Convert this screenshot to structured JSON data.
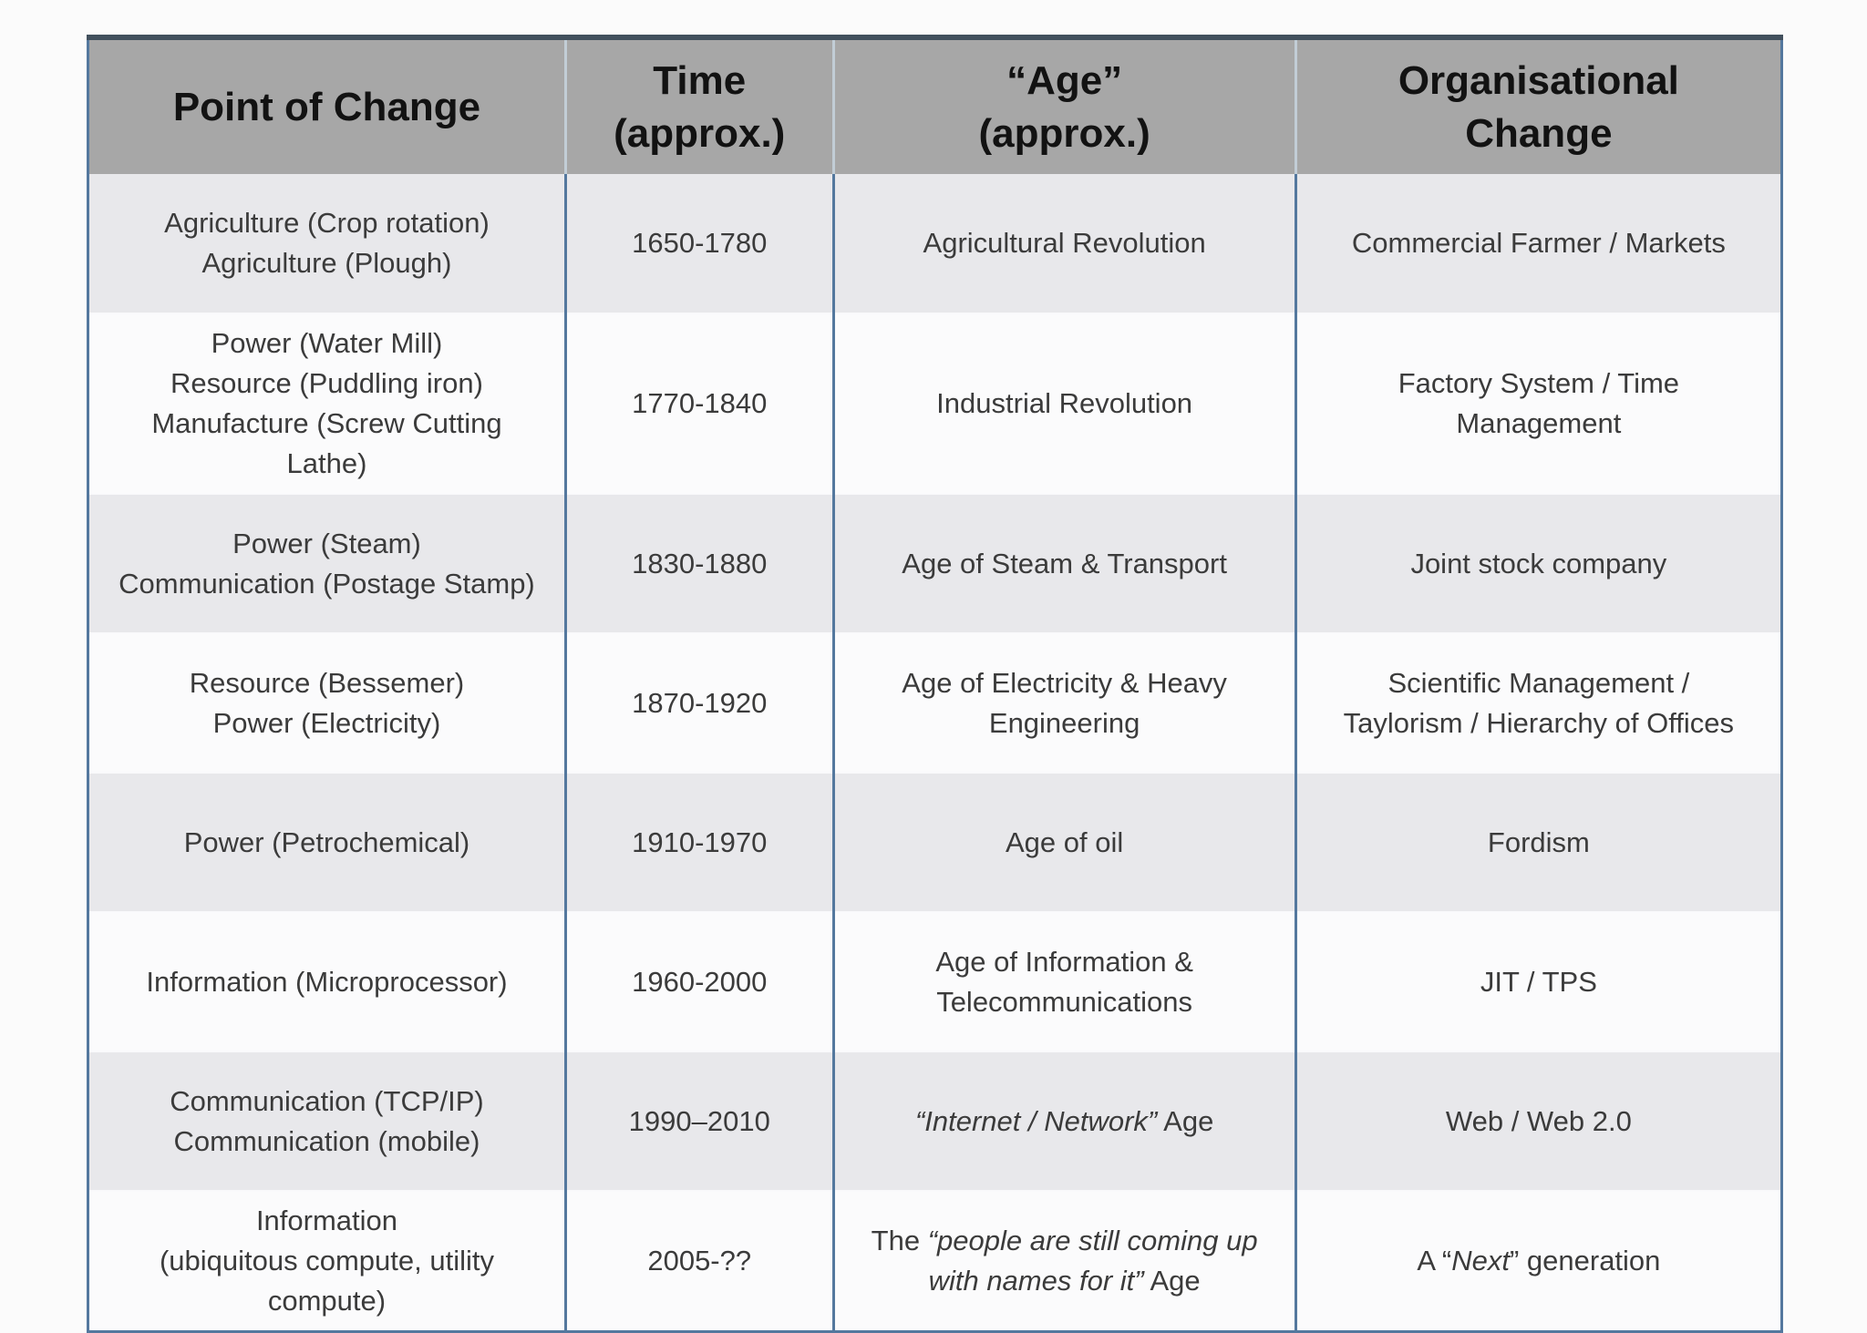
{
  "page": {
    "background": "#fbfbfb"
  },
  "table": {
    "colors": {
      "header_bg": "#a7a7a7",
      "header_text": "#121212",
      "row_bg_odd": "#e8e8eb",
      "row_bg_even": "#fbfbfc",
      "body_text": "#3b3b3b",
      "divider": "#54789e",
      "top_border": "#42505d"
    },
    "headers": [
      "Point of Change",
      "Time\n(approx.)",
      "“Age”\n(approx.)",
      "Organisational\nChange"
    ],
    "rows": [
      {
        "point": [
          {
            "t": "Agriculture (Crop rotation)\nAgriculture (Plough)"
          }
        ],
        "time": [
          {
            "t": "1650-1780"
          }
        ],
        "age": [
          {
            "t": "Agricultural Revolution"
          }
        ],
        "org": [
          {
            "t": "Commercial Farmer / Markets"
          }
        ]
      },
      {
        "point": [
          {
            "t": "Power (Water Mill)\nResource (Puddling iron)\nManufacture (Screw Cutting Lathe)"
          }
        ],
        "time": [
          {
            "t": "1770-1840"
          }
        ],
        "age": [
          {
            "t": "Industrial Revolution"
          }
        ],
        "org": [
          {
            "t": "Factory System / Time\nManagement"
          }
        ]
      },
      {
        "point": [
          {
            "t": "Power (Steam)\nCommunication (Postage Stamp)"
          }
        ],
        "time": [
          {
            "t": "1830-1880"
          }
        ],
        "age": [
          {
            "t": "Age of Steam & Transport"
          }
        ],
        "org": [
          {
            "t": "Joint stock company"
          }
        ]
      },
      {
        "point": [
          {
            "t": "Resource (Bessemer)\nPower (Electricity)"
          }
        ],
        "time": [
          {
            "t": "1870-1920"
          }
        ],
        "age": [
          {
            "t": "Age of Electricity & Heavy\nEngineering"
          }
        ],
        "org": [
          {
            "t": "Scientific Management /\nTaylorism / Hierarchy of Offices"
          }
        ]
      },
      {
        "point": [
          {
            "t": "Power (Petrochemical)"
          }
        ],
        "time": [
          {
            "t": "1910-1970"
          }
        ],
        "age": [
          {
            "t": "Age of oil"
          }
        ],
        "org": [
          {
            "t": "Fordism"
          }
        ]
      },
      {
        "point": [
          {
            "t": "Information (Microprocessor)"
          }
        ],
        "time": [
          {
            "t": "1960-2000"
          }
        ],
        "age": [
          {
            "t": "Age of Information &\nTelecommunications"
          }
        ],
        "org": [
          {
            "t": "JIT / TPS"
          }
        ]
      },
      {
        "point": [
          {
            "t": "Communication (TCP/IP)\nCommunication (mobile)"
          }
        ],
        "time": [
          {
            "t": "1990–2010"
          }
        ],
        "age": [
          {
            "t": "“Internet / Network”",
            "i": true
          },
          {
            "t": " Age"
          }
        ],
        "org": [
          {
            "t": "Web / Web 2.0"
          }
        ]
      },
      {
        "point": [
          {
            "t": "Information\n(ubiquitous compute, utility\ncompute)"
          }
        ],
        "time": [
          {
            "t": "2005-??"
          }
        ],
        "age": [
          {
            "t": "The "
          },
          {
            "t": "“people are still coming up\nwith names for it”",
            "i": true
          },
          {
            "t": " Age"
          }
        ],
        "org": [
          {
            "t": "A “"
          },
          {
            "t": "Next",
            "i": true
          },
          {
            "t": "” generation"
          }
        ]
      }
    ]
  }
}
